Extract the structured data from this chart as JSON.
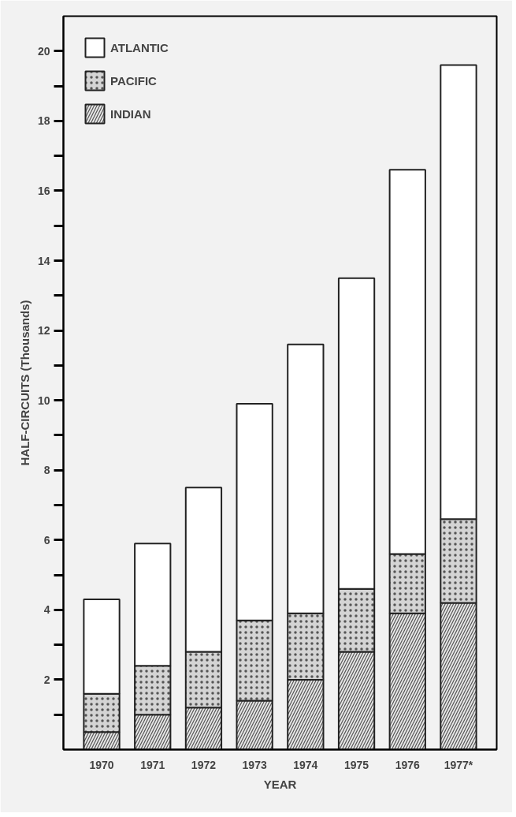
{
  "chart_data": {
    "type": "bar",
    "stacked": true,
    "xlabel": "YEAR",
    "ylabel": "HALF-CIRCUITS (Thousands)",
    "categories": [
      "1970",
      "1971",
      "1972",
      "1973",
      "1974",
      "1975",
      "1976",
      "1977*"
    ],
    "series": [
      {
        "name": "INDIAN",
        "color": "#e6e6e6",
        "values": [
          0.5,
          1.0,
          1.2,
          1.4,
          2.0,
          2.8,
          3.9,
          4.2
        ]
      },
      {
        "name": "PACIFIC",
        "color": "#d4d4d4",
        "values": [
          1.1,
          1.4,
          1.6,
          2.3,
          1.9,
          1.8,
          1.7,
          2.4
        ]
      },
      {
        "name": "ATLANTIC",
        "color": "#ffffff",
        "values": [
          2.7,
          3.5,
          4.7,
          6.2,
          7.7,
          8.9,
          11.0,
          13.0
        ]
      }
    ],
    "ylim": [
      0,
      21
    ],
    "yticks": [
      {
        "value": 1,
        "label": null
      },
      2,
      {
        "value": 3,
        "label": null
      },
      4,
      {
        "value": 5,
        "label": null
      },
      6,
      {
        "value": 7,
        "label": null
      },
      8,
      {
        "value": 9,
        "label": null
      },
      10,
      {
        "value": 11,
        "label": null
      },
      12,
      {
        "value": 13,
        "label": null
      },
      14,
      {
        "value": 15,
        "label": null
      },
      16,
      {
        "value": 17,
        "label": null
      },
      18,
      {
        "value": 19,
        "label": null
      },
      20
    ],
    "grid": false,
    "legend": "top left"
  }
}
